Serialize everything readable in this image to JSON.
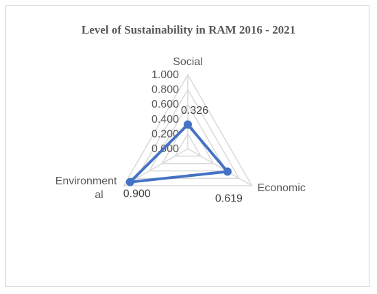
{
  "chart_data": {
    "type": "radar",
    "title": "Level of Sustainability in RAM 2016 - 2021",
    "categories": [
      "Social",
      "Economic",
      "Environmental"
    ],
    "category_lines": [
      [
        "Social"
      ],
      [
        "Economic"
      ],
      [
        "Environment",
        "al"
      ]
    ],
    "values": [
      0.326,
      0.619,
      0.9
    ],
    "value_labels": [
      "0.326",
      "0.619",
      "0.900"
    ],
    "ticks": [
      "0.000",
      "0.200",
      "0.400",
      "0.600",
      "0.800",
      "1.000"
    ],
    "tick_values": [
      0,
      0.2,
      0.4,
      0.6,
      0.8,
      1.0
    ],
    "rlim": [
      0,
      1
    ],
    "grid": true,
    "legend": "none",
    "series_color": "#4472c4",
    "grid_color": "#d9d9d9"
  }
}
